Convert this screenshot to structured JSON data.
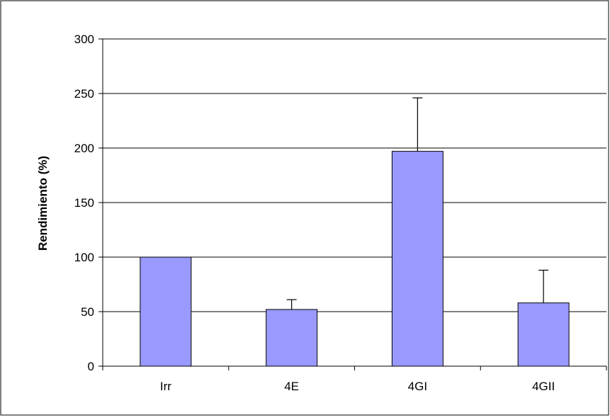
{
  "chart_data": {
    "type": "bar",
    "title": "",
    "xlabel": "",
    "ylabel": "Rendimiento (%)",
    "categories": [
      "Irr",
      "4E",
      "4GI",
      "4GII"
    ],
    "values": [
      100,
      52,
      197,
      58
    ],
    "error_plus": [
      0,
      9,
      49,
      30
    ],
    "ylim": [
      0,
      300
    ],
    "yticks": [
      0,
      50,
      100,
      150,
      200,
      250,
      300
    ],
    "grid": "horizontal",
    "legend": "none",
    "colors": {
      "bar_fill": "#9999ff",
      "bar_stroke": "#000000",
      "grid": "#000000",
      "axis": "#000000",
      "frame": "#000000",
      "background": "#ffffff"
    }
  }
}
